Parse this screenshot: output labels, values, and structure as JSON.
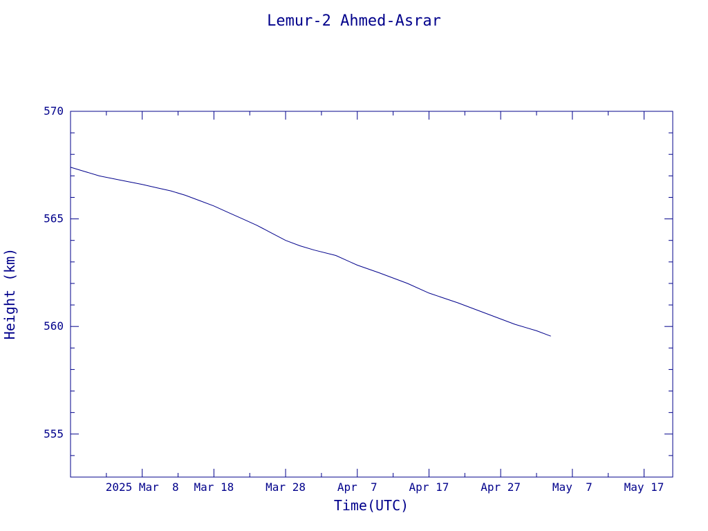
{
  "colors": {
    "ink": "#00008b",
    "background": "#ffffff"
  },
  "chart_data": {
    "type": "line",
    "title": "Lemur-2 Ahmed-Asrar",
    "xlabel": "Time(UTC)",
    "ylabel": "Height (km)",
    "x_scale": "date",
    "xlim": [
      "2025-02-26",
      "2025-05-21"
    ],
    "ylim": [
      553,
      570
    ],
    "grid": false,
    "legend": "none",
    "x_ticks": [
      {
        "label": "2025 Mar  8",
        "date": "2025-03-08"
      },
      {
        "label": "Mar 18",
        "date": "2025-03-18"
      },
      {
        "label": "Mar 28",
        "date": "2025-03-28"
      },
      {
        "label": "Apr  7",
        "date": "2025-04-07"
      },
      {
        "label": "Apr 17",
        "date": "2025-04-17"
      },
      {
        "label": "Apr 27",
        "date": "2025-04-27"
      },
      {
        "label": "May  7",
        "date": "2025-05-07"
      },
      {
        "label": "May 17",
        "date": "2025-05-17"
      }
    ],
    "x_minor_ticks": [
      "2025-03-03",
      "2025-03-13",
      "2025-03-23",
      "2025-04-02",
      "2025-04-12",
      "2025-04-22",
      "2025-05-02",
      "2025-05-12"
    ],
    "y_ticks": [
      555,
      560,
      565,
      570
    ],
    "y_minor_ticks": [
      554,
      556,
      557,
      558,
      559,
      561,
      562,
      563,
      564,
      566,
      567,
      568,
      569
    ],
    "series": [
      {
        "color": "#00008b",
        "points": [
          {
            "x": "2025-02-26",
            "y": 567.4
          },
          {
            "x": "2025-02-28",
            "y": 567.2
          },
          {
            "x": "2025-03-02",
            "y": 567.0
          },
          {
            "x": "2025-03-05",
            "y": 566.8
          },
          {
            "x": "2025-03-08",
            "y": 566.6
          },
          {
            "x": "2025-03-10",
            "y": 566.45
          },
          {
            "x": "2025-03-12",
            "y": 566.3
          },
          {
            "x": "2025-03-14",
            "y": 566.1
          },
          {
            "x": "2025-03-16",
            "y": 565.85
          },
          {
            "x": "2025-03-18",
            "y": 565.6
          },
          {
            "x": "2025-03-20",
            "y": 565.3
          },
          {
            "x": "2025-03-22",
            "y": 565.0
          },
          {
            "x": "2025-03-24",
            "y": 564.7
          },
          {
            "x": "2025-03-26",
            "y": 564.35
          },
          {
            "x": "2025-03-28",
            "y": 564.0
          },
          {
            "x": "2025-03-30",
            "y": 563.75
          },
          {
            "x": "2025-04-01",
            "y": 563.55
          },
          {
            "x": "2025-04-04",
            "y": 563.3
          },
          {
            "x": "2025-04-07",
            "y": 562.85
          },
          {
            "x": "2025-04-10",
            "y": 562.5
          },
          {
            "x": "2025-04-14",
            "y": 562.0
          },
          {
            "x": "2025-04-17",
            "y": 561.55
          },
          {
            "x": "2025-04-21",
            "y": 561.1
          },
          {
            "x": "2025-04-25",
            "y": 560.6
          },
          {
            "x": "2025-04-29",
            "y": 560.1
          },
          {
            "x": "2025-05-02",
            "y": 559.8
          },
          {
            "x": "2025-05-04",
            "y": 559.55
          }
        ]
      }
    ]
  }
}
